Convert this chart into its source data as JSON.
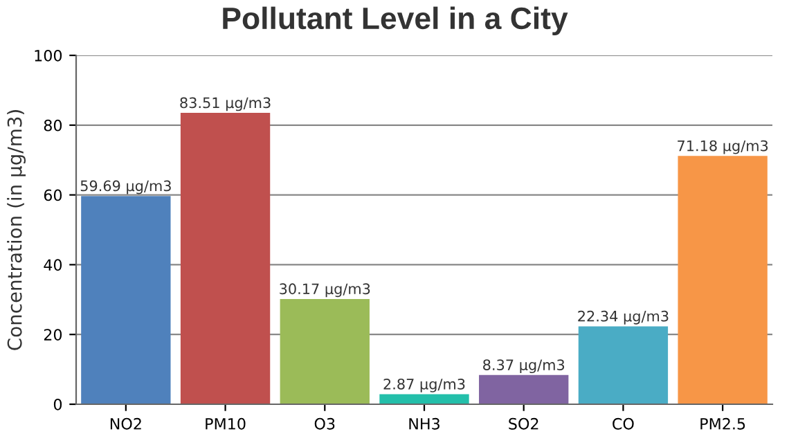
{
  "chart_data": {
    "type": "bar",
    "title": "Pollutant Level in a City",
    "ylabel": "Concentration (in µg/m3)",
    "categories": [
      "NO2",
      "PM10",
      "O3",
      "NH3",
      "SO2",
      "CO",
      "PM2.5"
    ],
    "values": [
      59.69,
      83.51,
      30.17,
      2.87,
      8.37,
      22.34,
      71.18
    ],
    "colors": [
      "#4f81bc",
      "#c0504e",
      "#9bbb58",
      "#23bfaa",
      "#8064a1",
      "#4aacc5",
      "#f79647"
    ],
    "value_labels": [
      "59.69 µg/m3",
      "83.51 µg/m3",
      "30.17 µg/m3",
      "2.87 µg/m3",
      "8.37 µg/m3",
      "22.34 µg/m3",
      "71.18 µg/m3"
    ],
    "ylim": [
      0,
      100
    ],
    "yticks": [
      0,
      20,
      40,
      60,
      80,
      100
    ],
    "grid": "y"
  }
}
